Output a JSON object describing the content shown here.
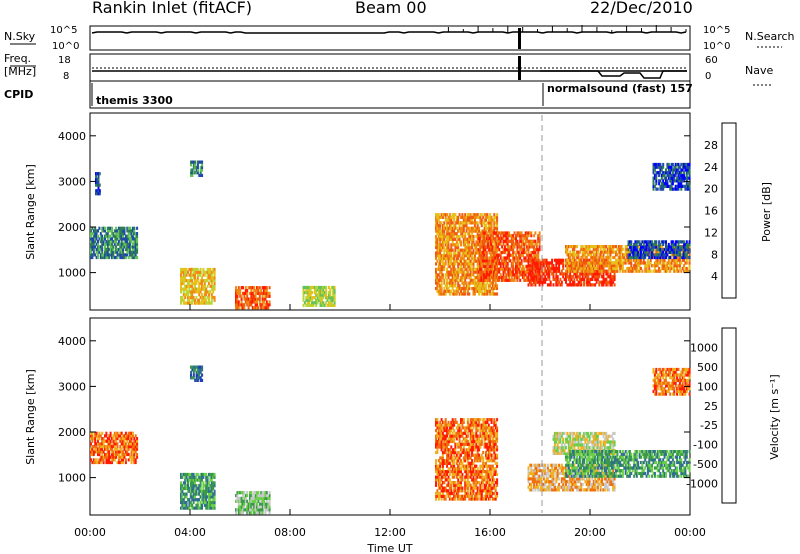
{
  "chart_data": [
    {
      "type": "header",
      "title": "Rankin Inlet (fitACF)",
      "beam": "Beam 00",
      "date": "22/Dec/2010"
    },
    {
      "type": "line",
      "name": "N.Sky / N.Search",
      "left_label": "N.Sky",
      "right_label": "N.Search",
      "left_ticks": [
        "10^5",
        "10^0"
      ],
      "right_ticks": [
        "10^5",
        "10^0"
      ]
    },
    {
      "type": "line",
      "name": "Freq / Nave",
      "left_label_1": "Freq.",
      "left_label_2": "[MHz]",
      "right_label": "Nave",
      "left_ticks": [
        "18",
        "8"
      ],
      "right_ticks": [
        "60",
        "0"
      ]
    },
    {
      "type": "table",
      "name": "CPID",
      "label": "CPID",
      "entries": [
        {
          "text": "themis 3300",
          "x_hour": 0
        },
        {
          "text": "normalsound (fast)  157",
          "x_hour": 18.1
        }
      ]
    },
    {
      "type": "heatmap",
      "name": "power",
      "ylabel": "Slant Range [km]",
      "yticks": [
        1000,
        2000,
        3000,
        4000
      ],
      "ylim": [
        180,
        4500
      ],
      "colorbar_label": "Power [dB]",
      "colorbar_ticks": [
        "28",
        "24",
        "20",
        "16",
        "12",
        "8",
        "4"
      ],
      "colors": [
        "#0000ff",
        "#1f4aa8",
        "#2e7d55",
        "#63c35a",
        "#b5d83a",
        "#e8c01a",
        "#f08a12",
        "#f05a10",
        "#ff1a00"
      ],
      "blobs": [
        {
          "t0": 0.0,
          "t1": 1.9,
          "r0": 1300,
          "r1": 2000,
          "c": 2
        },
        {
          "t0": 0.2,
          "t1": 0.4,
          "r0": 2700,
          "r1": 3200,
          "c": 1
        },
        {
          "t0": 4.0,
          "t1": 4.5,
          "r0": 3100,
          "r1": 3450,
          "c": 2
        },
        {
          "t0": 3.6,
          "t1": 5.0,
          "r0": 300,
          "r1": 1100,
          "c": 5
        },
        {
          "t0": 5.8,
          "t1": 7.2,
          "r0": 200,
          "r1": 700,
          "c": 7
        },
        {
          "t0": 8.5,
          "t1": 9.8,
          "r0": 250,
          "r1": 700,
          "c": 4
        },
        {
          "t0": 13.8,
          "t1": 16.3,
          "r0": 500,
          "r1": 2300,
          "c": 6
        },
        {
          "t0": 15.5,
          "t1": 18.0,
          "r0": 800,
          "r1": 1900,
          "c": 7
        },
        {
          "t0": 17.5,
          "t1": 21.0,
          "r0": 700,
          "r1": 1300,
          "c": 8
        },
        {
          "t0": 19.0,
          "t1": 24.0,
          "r0": 1000,
          "r1": 1600,
          "c": 6
        },
        {
          "t0": 21.5,
          "t1": 24.0,
          "r0": 1300,
          "r1": 1700,
          "c": 1
        },
        {
          "t0": 22.5,
          "t1": 24.0,
          "r0": 2800,
          "r1": 3400,
          "c": 1
        }
      ]
    },
    {
      "type": "heatmap",
      "name": "velocity",
      "ylabel": "Slant Range [km]",
      "yticks": [
        1000,
        2000,
        3000,
        4000
      ],
      "ylim": [
        180,
        4500
      ],
      "colorbar_label": "Velocity [m s⁻¹]",
      "colorbar_ticks": [
        "1000",
        "500",
        "100",
        "25",
        "-25",
        "-100",
        "-500",
        "-1000"
      ],
      "colors": [
        "#1f3fb5",
        "#2f6f8f",
        "#3a9a4a",
        "#6ccf4a",
        "#c8c8c8",
        "#f0b020",
        "#f07010",
        "#ff1a00"
      ],
      "blobs": [
        {
          "t0": 0.0,
          "t1": 1.9,
          "r0": 1300,
          "r1": 2000,
          "c": 6
        },
        {
          "t0": 4.0,
          "t1": 4.5,
          "r0": 3100,
          "r1": 3450,
          "c": 1
        },
        {
          "t0": 3.6,
          "t1": 5.0,
          "r0": 300,
          "r1": 1100,
          "c": 2
        },
        {
          "t0": 5.8,
          "t1": 7.2,
          "r0": 200,
          "r1": 700,
          "c": 3
        },
        {
          "t0": 13.8,
          "t1": 16.3,
          "r0": 500,
          "r1": 2300,
          "c": 6
        },
        {
          "t0": 17.5,
          "t1": 21.0,
          "r0": 700,
          "r1": 1300,
          "c": 5
        },
        {
          "t0": 18.5,
          "t1": 21.0,
          "r0": 1500,
          "r1": 2000,
          "c": 4
        },
        {
          "t0": 19.0,
          "t1": 24.0,
          "r0": 1000,
          "r1": 1600,
          "c": 2
        },
        {
          "t0": 22.5,
          "t1": 24.0,
          "r0": 2800,
          "r1": 3400,
          "c": 6
        }
      ]
    },
    {
      "type": "axis",
      "name": "time-axis",
      "xlabel": "Time UT",
      "xticks": [
        "00:00",
        "04:00",
        "08:00",
        "12:00",
        "16:00",
        "20:00",
        "00:00"
      ],
      "xlim_hours": [
        0,
        24
      ]
    }
  ]
}
